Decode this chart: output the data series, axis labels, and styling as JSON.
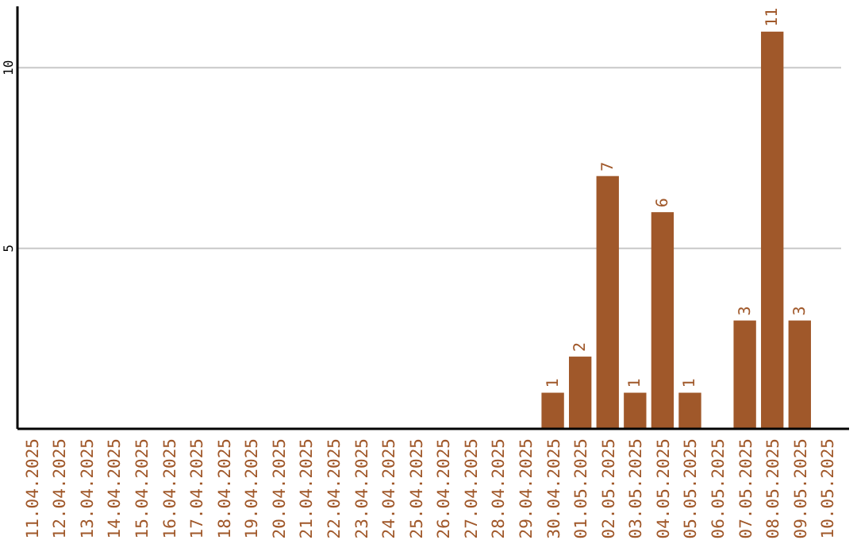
{
  "chart_data": {
    "type": "bar",
    "categories": [
      "11.04.2025",
      "12.04.2025",
      "13.04.2025",
      "14.04.2025",
      "15.04.2025",
      "16.04.2025",
      "17.04.2025",
      "18.04.2025",
      "19.04.2025",
      "20.04.2025",
      "21.04.2025",
      "22.04.2025",
      "23.04.2025",
      "24.04.2025",
      "25.04.2025",
      "26.04.2025",
      "27.04.2025",
      "28.04.2025",
      "29.04.2025",
      "30.04.2025",
      "01.05.2025",
      "02.05.2025",
      "03.05.2025",
      "04.05.2025",
      "05.05.2025",
      "06.05.2025",
      "07.05.2025",
      "08.05.2025",
      "09.05.2025",
      "10.05.2025"
    ],
    "values": [
      0,
      0,
      0,
      0,
      0,
      0,
      0,
      0,
      0,
      0,
      0,
      0,
      0,
      0,
      0,
      0,
      0,
      0,
      0,
      1,
      2,
      7,
      1,
      6,
      1,
      0,
      3,
      11,
      3,
      0
    ],
    "value_labels": [
      null,
      null,
      null,
      null,
      null,
      null,
      null,
      null,
      null,
      null,
      null,
      null,
      null,
      null,
      null,
      null,
      null,
      null,
      null,
      "1",
      "2",
      "7",
      "1",
      "6",
      "1",
      null,
      "3",
      "11",
      "3",
      null
    ],
    "color": "#a0582a",
    "ylim": [
      0,
      11.7
    ],
    "yticks": [
      5,
      10
    ],
    "grid": "y"
  }
}
